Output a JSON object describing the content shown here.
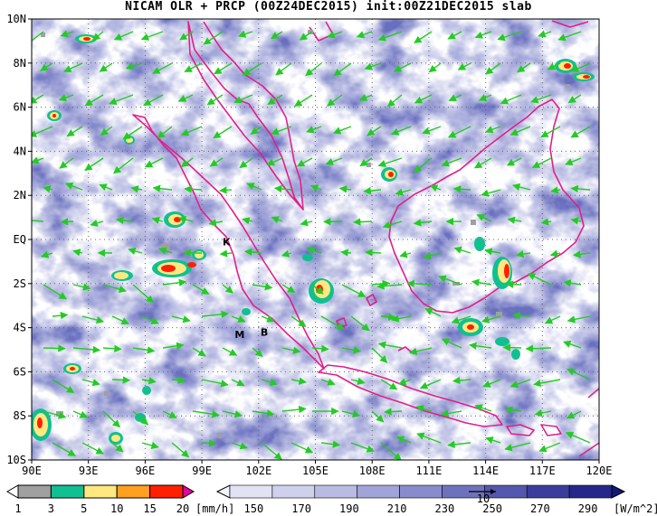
{
  "title": "NICAM OLR + PRCP (00Z24DEC2015) init:00Z21DEC2015 slab",
  "map": {
    "lat_labels": [
      "10N",
      "8N",
      "6N",
      "4N",
      "2N",
      "EQ",
      "2S",
      "4S",
      "6S",
      "8S",
      "10S"
    ],
    "lon_labels": [
      "90E",
      "93E",
      "96E",
      "99E",
      "102E",
      "105E",
      "108E",
      "111E",
      "114E",
      "117E",
      "120E"
    ],
    "lon_range": [
      90,
      120
    ],
    "lat_range": [
      -10,
      10
    ],
    "grid": "dotted",
    "coastline_color": "#e0208a",
    "wind_vector_color": "#22cc22",
    "station_markers": [
      {
        "label": "K",
        "lon": 100.3,
        "lat": -0.1
      },
      {
        "label": "M",
        "lon": 101.0,
        "lat": -4.3
      },
      {
        "label": "B",
        "lon": 102.3,
        "lat": -4.2
      }
    ]
  },
  "precip_colorbar": {
    "ticks": [
      "1",
      "3",
      "5",
      "10",
      "15",
      "20"
    ],
    "unit": "[mm/h]",
    "colors": [
      "#ffffff",
      "#a0a0a0",
      "#10c090",
      "#ffe880",
      "#ffa020",
      "#ff2000",
      "#e000a0"
    ]
  },
  "olr_colorbar": {
    "ticks": [
      "150",
      "170",
      "190",
      "210",
      "230",
      "250",
      "270",
      "290"
    ],
    "unit": "[W/m^2]",
    "vector_ref_label": "10",
    "colors": [
      "#f4f4fb",
      "#e2e2f4",
      "#cfd0ec",
      "#b9bbe3",
      "#a1a4d8",
      "#888ccc",
      "#6e72bd",
      "#5357ad",
      "#3a3d9c",
      "#25288a",
      "#14177a"
    ]
  }
}
